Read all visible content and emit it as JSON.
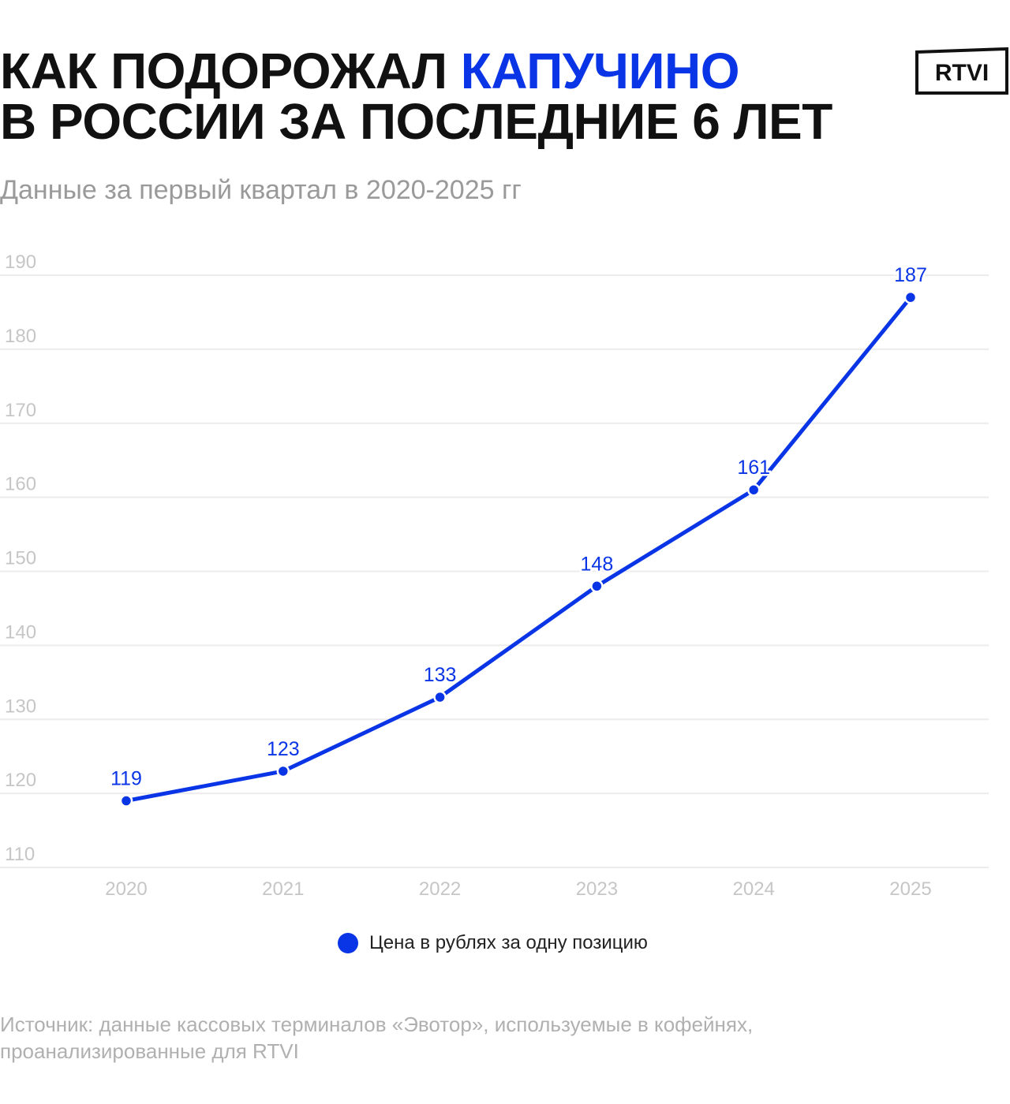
{
  "title": {
    "line1_prefix": "КАК ПОДОРОЖАЛ ",
    "line1_accent": "КАПУЧИНО",
    "line2": "В РОССИИ ЗА ПОСЛЕДНИЕ 6 ЛЕТ"
  },
  "subtitle": "Данные за первый квартал в 2020-2025 гг",
  "logo": {
    "text": "RTVI",
    "icon": "rtvi-logo"
  },
  "legend": {
    "label": "Цена в рублях за одну позицию"
  },
  "source": {
    "line1": "Источник: данные кассовых терминалов «Эвотор», используемые в кофейнях,",
    "line2": "проанализированные для RTVI"
  },
  "colors": {
    "accent": "#0a35e6",
    "text": "#111111",
    "muted": "#9a9a9a",
    "grid": "#ececec",
    "tick": "#c6c6c6"
  },
  "chart_data": {
    "type": "line",
    "title": "",
    "xlabel": "",
    "ylabel": "",
    "categories": [
      "2020",
      "2021",
      "2022",
      "2023",
      "2024",
      "2025"
    ],
    "series": [
      {
        "name": "Цена в рублях за одну позицию",
        "values": [
          119,
          123,
          133,
          148,
          161,
          187
        ]
      }
    ],
    "ylim": [
      110,
      190
    ],
    "yticks": [
      110,
      120,
      130,
      140,
      150,
      160,
      170,
      180,
      190
    ],
    "grid": true,
    "legend": "bottom-center",
    "data_labels": true
  }
}
